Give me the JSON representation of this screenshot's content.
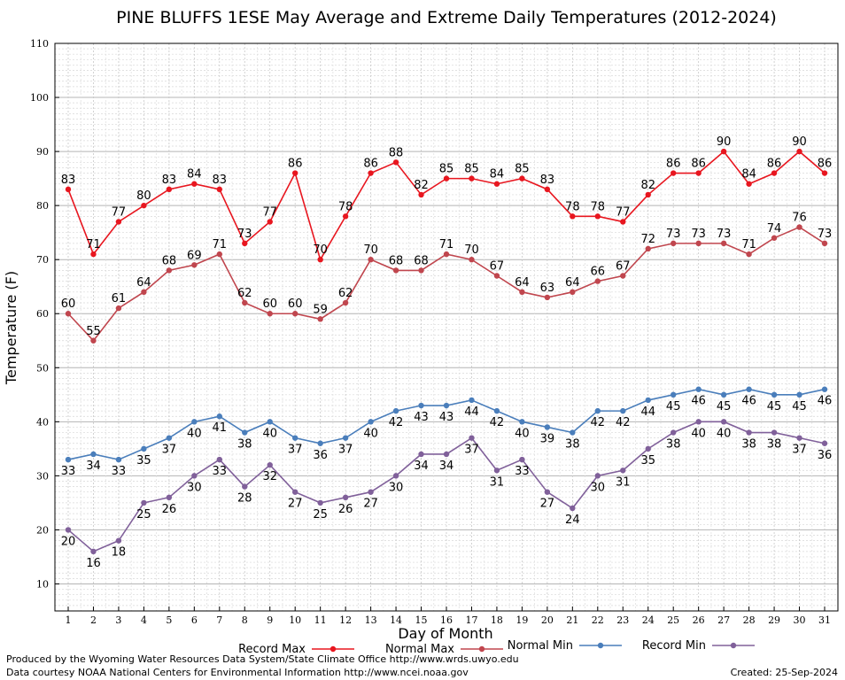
{
  "chart_data": {
    "type": "line",
    "title": "PINE BLUFFS 1ESE May Average and Extreme Daily Temperatures (2012-2024)",
    "xlabel": "Day of Month",
    "ylabel": "Temperature (F)",
    "ylim": [
      5,
      110
    ],
    "yticks": [
      10,
      20,
      30,
      40,
      50,
      60,
      70,
      80,
      90,
      100,
      110
    ],
    "x": [
      1,
      2,
      3,
      4,
      5,
      6,
      7,
      8,
      9,
      10,
      11,
      12,
      13,
      14,
      15,
      16,
      17,
      18,
      19,
      20,
      21,
      22,
      23,
      24,
      25,
      26,
      27,
      28,
      29,
      30,
      31
    ],
    "grid": true,
    "legend_position": "bottom",
    "series": [
      {
        "name": "Record Max",
        "color": "#e8161f",
        "values": [
          83,
          71,
          77,
          80,
          83,
          84,
          83,
          73,
          77,
          86,
          70,
          78,
          86,
          88,
          82,
          85,
          85,
          84,
          85,
          83,
          78,
          78,
          77,
          82,
          86,
          86,
          90,
          84,
          86,
          90,
          86
        ]
      },
      {
        "name": "Normal Max",
        "color": "#c0464e",
        "values": [
          60,
          55,
          61,
          64,
          68,
          69,
          71,
          62,
          60,
          60,
          59,
          62,
          70,
          68,
          68,
          71,
          70,
          67,
          64,
          63,
          64,
          66,
          67,
          72,
          73,
          73,
          73,
          71,
          74,
          76,
          73
        ]
      },
      {
        "name": "Normal Min",
        "color": "#4a7ebb",
        "values": [
          33,
          34,
          33,
          35,
          37,
          40,
          41,
          38,
          40,
          37,
          36,
          37,
          40,
          42,
          43,
          43,
          44,
          42,
          40,
          39,
          38,
          42,
          42,
          44,
          45,
          46,
          45,
          46,
          45,
          45,
          46
        ]
      },
      {
        "name": "Record Min",
        "color": "#80609a",
        "values": [
          20,
          16,
          18,
          25,
          26,
          30,
          33,
          28,
          32,
          27,
          25,
          26,
          27,
          30,
          34,
          34,
          37,
          31,
          33,
          27,
          24,
          30,
          31,
          35,
          38,
          40,
          40,
          38,
          38,
          37,
          36
        ]
      }
    ]
  },
  "footer": {
    "produced_by": "Produced by the Wyoming Water Resources Data System/State Climate Office http://www.wrds.uwyo.edu",
    "data_courtesy": "Data courtesy NOAA National Centers for Environmental Information http://www.ncei.noaa.gov",
    "created": "Created:  25-Sep-2024"
  }
}
